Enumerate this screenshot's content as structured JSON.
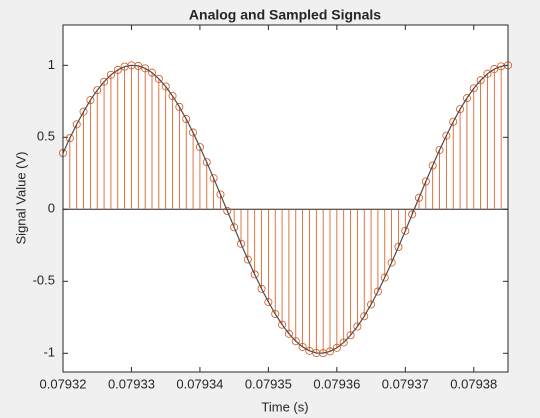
{
  "chart_data": {
    "type": "stem",
    "title": "Analog and Sampled Signals",
    "x_label": "Time (s)",
    "y_label": "Signal Value (V)",
    "x": [
      0.07932,
      0.079321,
      0.079322,
      0.079323,
      0.079324,
      0.079325,
      0.079326,
      0.079327,
      0.079328,
      0.079329,
      0.07933,
      0.079331,
      0.079332,
      0.079333,
      0.079334,
      0.079335,
      0.079336,
      0.079337,
      0.079338,
      0.079339,
      0.07934,
      0.079341,
      0.079342,
      0.079343,
      0.079344,
      0.079345,
      0.079346,
      0.079347,
      0.079348,
      0.079349,
      0.07935,
      0.079351,
      0.079352,
      0.079353,
      0.079354,
      0.079355,
      0.079356,
      0.079357,
      0.079358,
      0.079359,
      0.07936,
      0.079361,
      0.079362,
      0.079363,
      0.079364,
      0.079365,
      0.079366,
      0.079367,
      0.079368,
      0.079369,
      0.07937,
      0.079371,
      0.079372,
      0.079373,
      0.079374,
      0.079375,
      0.079376,
      0.079377,
      0.079378,
      0.079379,
      0.07938,
      0.079381,
      0.079382,
      0.079383,
      0.079384,
      0.079385
    ],
    "series": [
      {
        "style": "line",
        "color": "#4d4d4d",
        "values": [
          0.391,
          0.494,
          0.59,
          0.678,
          0.758,
          0.827,
          0.886,
          0.934,
          0.968,
          0.991,
          1.0,
          0.996,
          0.979,
          0.949,
          0.906,
          0.853,
          0.787,
          0.711,
          0.627,
          0.533,
          0.432,
          0.327,
          0.216,
          0.103,
          -0.012,
          -0.125,
          -0.239,
          -0.349,
          -0.452,
          -0.552,
          -0.644,
          -0.727,
          -0.801,
          -0.864,
          -0.916,
          -0.956,
          -0.983,
          -0.998,
          -0.999,
          -0.987,
          -0.962,
          -0.925,
          -0.875,
          -0.814,
          -0.743,
          -0.661,
          -0.571,
          -0.474,
          -0.37,
          -0.261,
          -0.15,
          -0.035,
          0.08,
          0.193,
          0.304,
          0.412,
          0.512,
          0.608,
          0.695,
          0.772,
          0.84,
          0.896,
          0.941,
          0.974,
          0.993,
          1.0
        ]
      },
      {
        "style": "stem",
        "color": "#d95319",
        "values": [
          0.391,
          0.494,
          0.59,
          0.678,
          0.758,
          0.827,
          0.886,
          0.934,
          0.968,
          0.991,
          1.0,
          0.996,
          0.979,
          0.949,
          0.906,
          0.853,
          0.787,
          0.711,
          0.627,
          0.533,
          0.432,
          0.327,
          0.216,
          0.103,
          -0.012,
          -0.125,
          -0.239,
          -0.349,
          -0.452,
          -0.552,
          -0.644,
          -0.727,
          -0.801,
          -0.864,
          -0.916,
          -0.956,
          -0.983,
          -0.998,
          -0.999,
          -0.987,
          -0.962,
          -0.925,
          -0.875,
          -0.814,
          -0.743,
          -0.661,
          -0.571,
          -0.474,
          -0.37,
          -0.261,
          -0.15,
          -0.035,
          0.08,
          0.193,
          0.304,
          0.412,
          0.512,
          0.608,
          0.695,
          0.772,
          0.84,
          0.896,
          0.941,
          0.974,
          0.993,
          1.0
        ]
      }
    ],
    "xlim": [
      0.07932,
      0.079385
    ],
    "xticks": [
      0.07932,
      0.07933,
      0.07934,
      0.07935,
      0.07936,
      0.07937,
      0.07938
    ],
    "ylim": [
      -1.13,
      1.28
    ],
    "yticks": [
      -1,
      -0.5,
      0,
      0.5,
      1
    ]
  }
}
